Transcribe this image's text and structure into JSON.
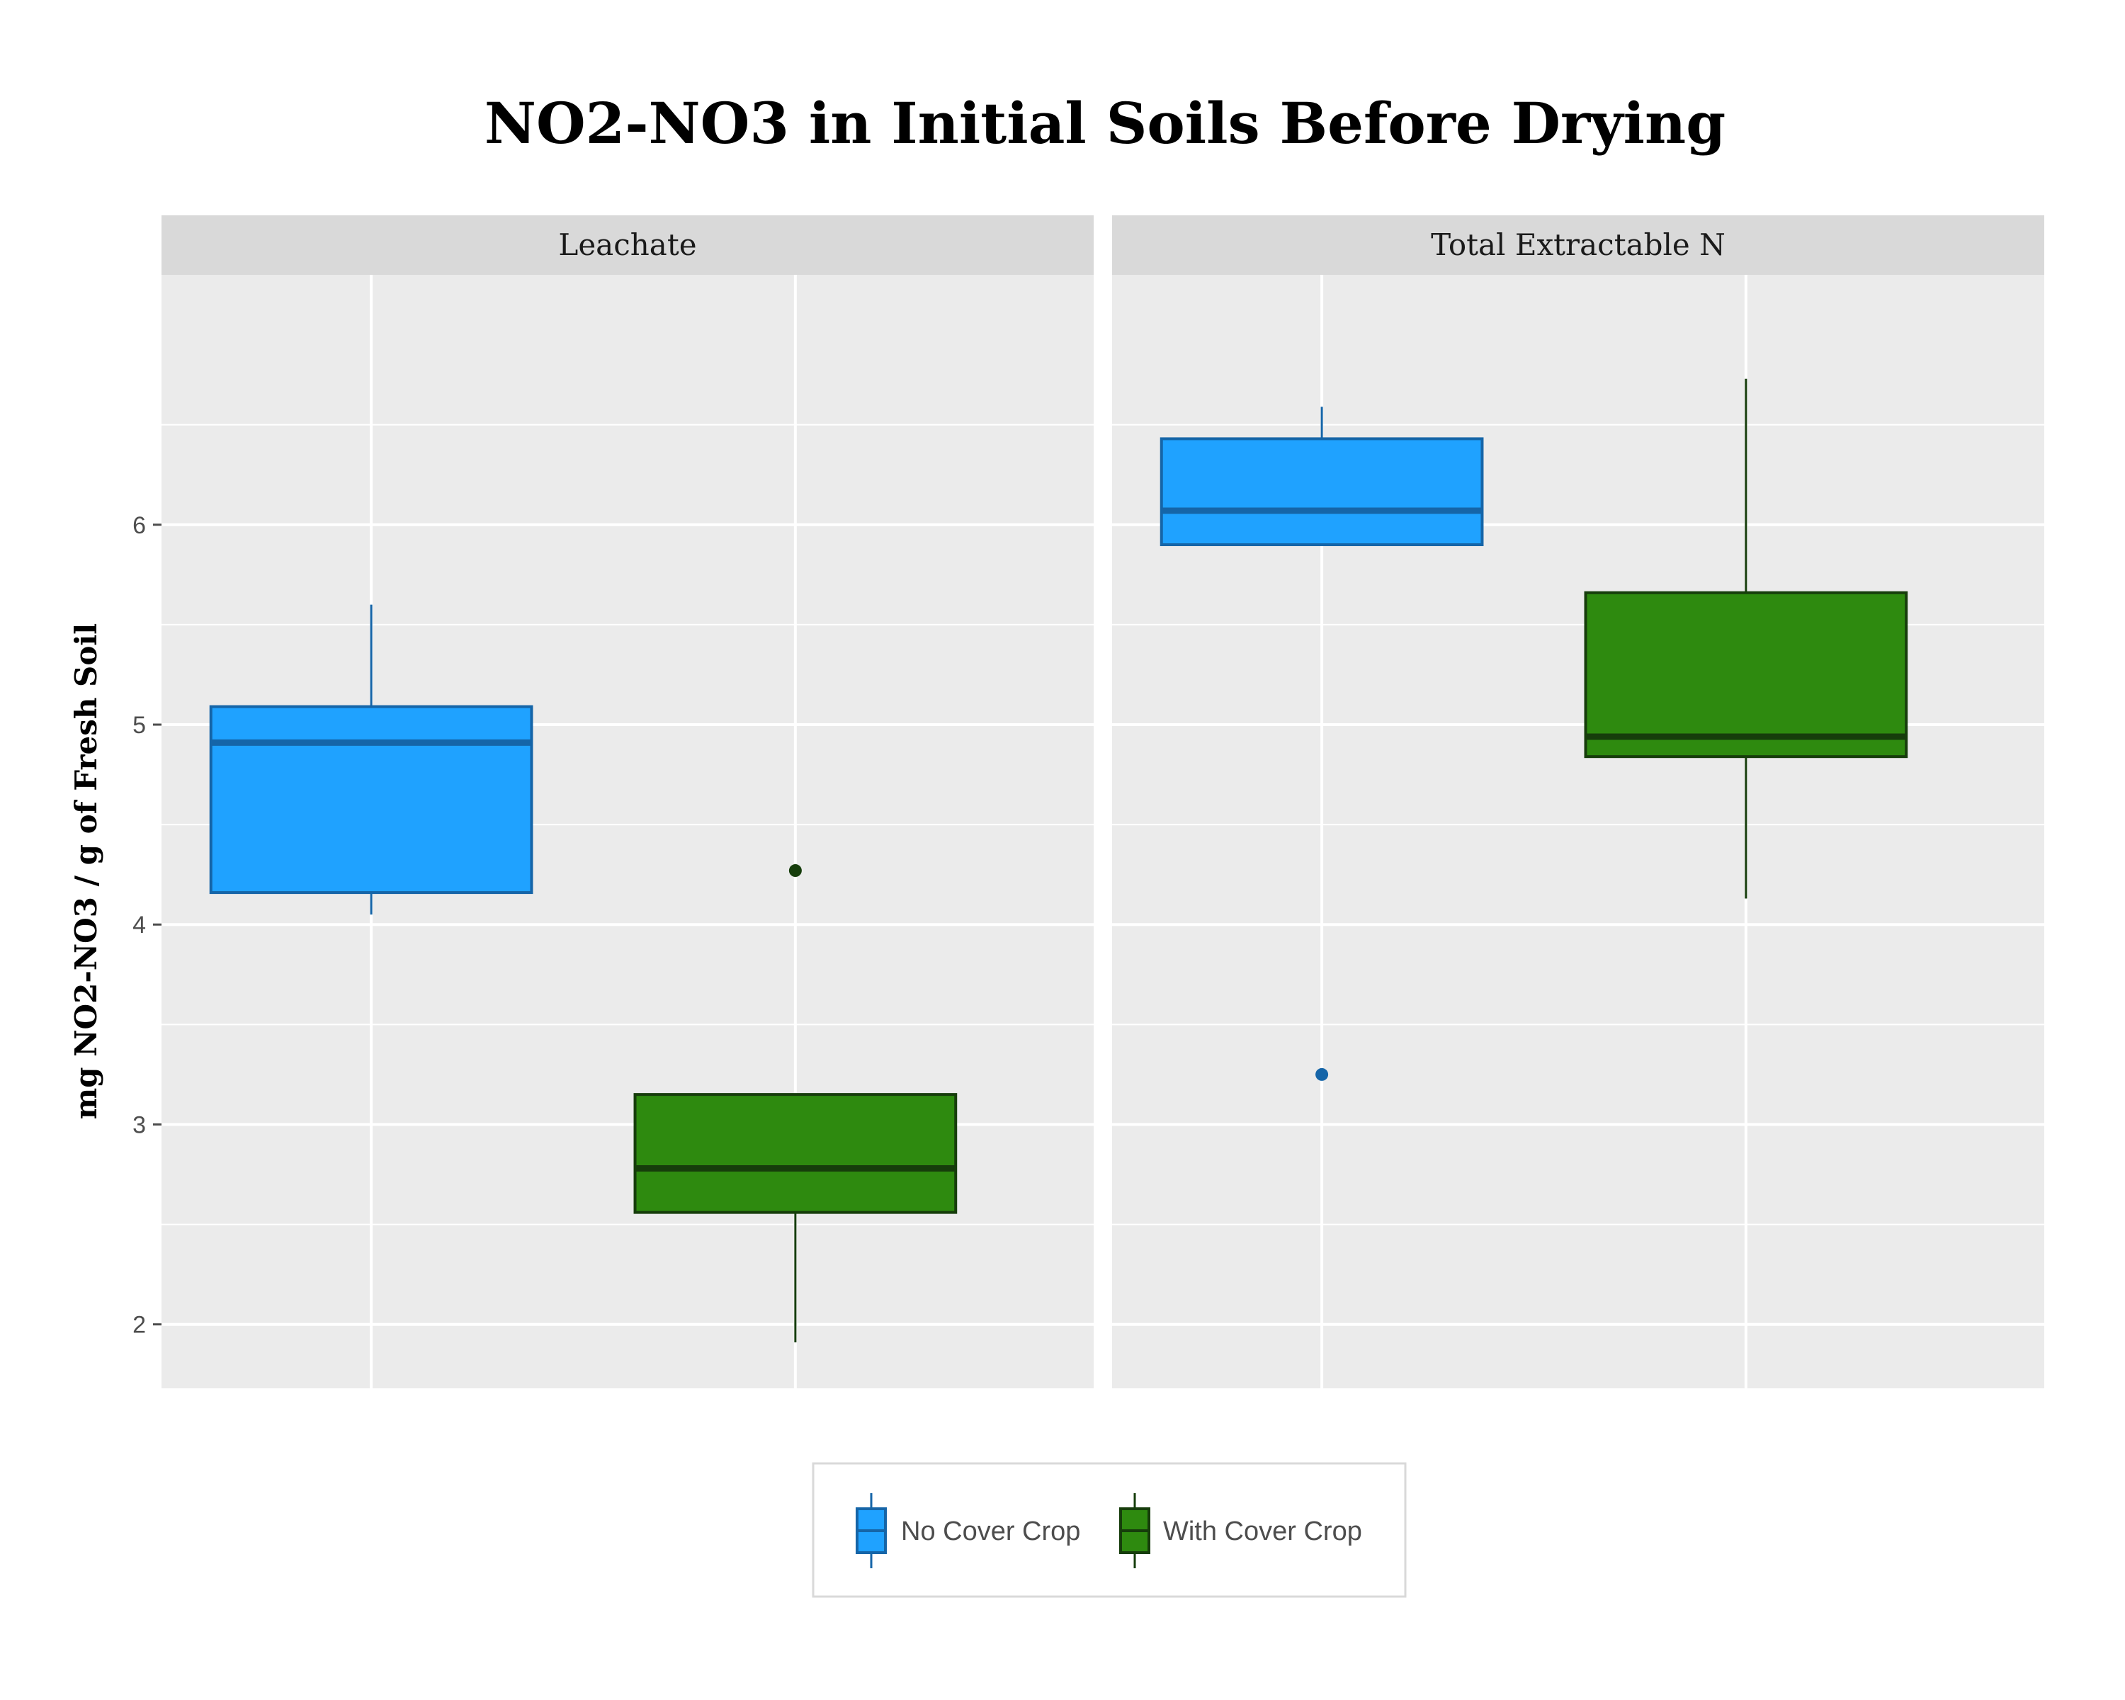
{
  "chart_data": {
    "type": "boxplot",
    "title": "NO2-NO3 in Initial Soils Before Drying",
    "ylabel": "mg NO2-NO3 / g of Fresh Soil",
    "xlabel": "",
    "ylim": [
      1.68,
      7.25
    ],
    "yticks": [
      2,
      3,
      4,
      5,
      6
    ],
    "grid": true,
    "legend_position": "bottom",
    "series": [
      {
        "name": "No Cover Crop",
        "fill": "#1fa2ff",
        "stroke": "#1565a8"
      },
      {
        "name": "With Cover Crop",
        "fill": "#2e8a0f",
        "stroke": "#163d0b"
      }
    ],
    "facets": [
      {
        "label": "Leachate",
        "boxes": [
          {
            "series": "No Cover Crop",
            "whisker_low": 4.05,
            "q1": 4.16,
            "median": 4.91,
            "q3": 5.09,
            "whisker_high": 5.6,
            "outliers": []
          },
          {
            "series": "With Cover Crop",
            "whisker_low": 1.91,
            "q1": 2.56,
            "median": 2.78,
            "q3": 3.15,
            "whisker_high": 3.15,
            "outliers": [
              4.27
            ]
          }
        ]
      },
      {
        "label": "Total Extractable N",
        "boxes": [
          {
            "series": "No Cover Crop",
            "whisker_low": 5.9,
            "q1": 5.9,
            "median": 6.07,
            "q3": 6.43,
            "whisker_high": 6.59,
            "outliers": [
              3.25
            ]
          },
          {
            "series": "With Cover Crop",
            "whisker_low": 4.13,
            "q1": 4.84,
            "median": 4.94,
            "q3": 5.66,
            "whisker_high": 6.73,
            "outliers": []
          }
        ]
      }
    ]
  }
}
